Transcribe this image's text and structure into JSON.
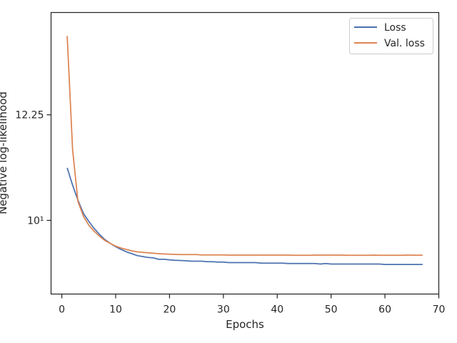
{
  "chart_data": {
    "type": "line",
    "xlabel": "Epochs",
    "ylabel": "Negative log-likelihood",
    "xlim": [
      -2,
      70
    ],
    "ylim": [
      8.43,
      14.43
    ],
    "x_ticks": [
      0,
      10,
      20,
      30,
      40,
      50,
      60,
      70
    ],
    "x_tick_labels": [
      "0",
      "10",
      "20",
      "30",
      "40",
      "50",
      "60",
      "70"
    ],
    "y_ticks": [
      10,
      12.25
    ],
    "y_tick_labels": [
      "10¹",
      "12.25"
    ],
    "grid": false,
    "legend_position": "top-right",
    "x": [
      1,
      2,
      3,
      4,
      5,
      6,
      7,
      8,
      9,
      10,
      11,
      12,
      13,
      14,
      15,
      16,
      17,
      18,
      19,
      20,
      21,
      22,
      23,
      24,
      25,
      26,
      27,
      28,
      29,
      30,
      31,
      32,
      33,
      34,
      35,
      36,
      37,
      38,
      39,
      40,
      41,
      42,
      43,
      44,
      45,
      46,
      47,
      48,
      49,
      50,
      51,
      52,
      53,
      54,
      55,
      56,
      57,
      58,
      59,
      60,
      61,
      62,
      63,
      64,
      65,
      66,
      67
    ],
    "series": [
      {
        "name": "Loss",
        "color": "#4c72b0",
        "values": [
          11.12,
          10.75,
          10.43,
          10.15,
          9.98,
          9.83,
          9.7,
          9.59,
          9.51,
          9.44,
          9.38,
          9.33,
          9.29,
          9.25,
          9.23,
          9.21,
          9.2,
          9.17,
          9.17,
          9.16,
          9.15,
          9.145,
          9.14,
          9.13,
          9.13,
          9.13,
          9.12,
          9.12,
          9.11,
          9.11,
          9.1,
          9.1,
          9.1,
          9.1,
          9.1,
          9.1,
          9.09,
          9.09,
          9.09,
          9.09,
          9.09,
          9.08,
          9.08,
          9.08,
          9.08,
          9.08,
          9.08,
          9.07,
          9.08,
          9.07,
          9.07,
          9.07,
          9.07,
          9.07,
          9.07,
          9.07,
          9.07,
          9.07,
          9.07,
          9.06,
          9.06,
          9.06,
          9.06,
          9.06,
          9.06,
          9.06,
          9.06
        ]
      },
      {
        "name": "Val. loss",
        "color": "#dd8452",
        "values": [
          13.93,
          11.5,
          10.4,
          10.09,
          9.9,
          9.77,
          9.66,
          9.57,
          9.51,
          9.45,
          9.41,
          9.38,
          9.35,
          9.33,
          9.32,
          9.31,
          9.3,
          9.29,
          9.285,
          9.28,
          9.275,
          9.27,
          9.27,
          9.27,
          9.27,
          9.265,
          9.265,
          9.265,
          9.265,
          9.265,
          9.26,
          9.26,
          9.26,
          9.26,
          9.26,
          9.26,
          9.26,
          9.26,
          9.26,
          9.26,
          9.26,
          9.26,
          9.255,
          9.255,
          9.255,
          9.255,
          9.26,
          9.26,
          9.26,
          9.26,
          9.26,
          9.26,
          9.255,
          9.255,
          9.255,
          9.255,
          9.255,
          9.26,
          9.255,
          9.255,
          9.255,
          9.255,
          9.255,
          9.26,
          9.26,
          9.255,
          9.26
        ]
      }
    ]
  }
}
